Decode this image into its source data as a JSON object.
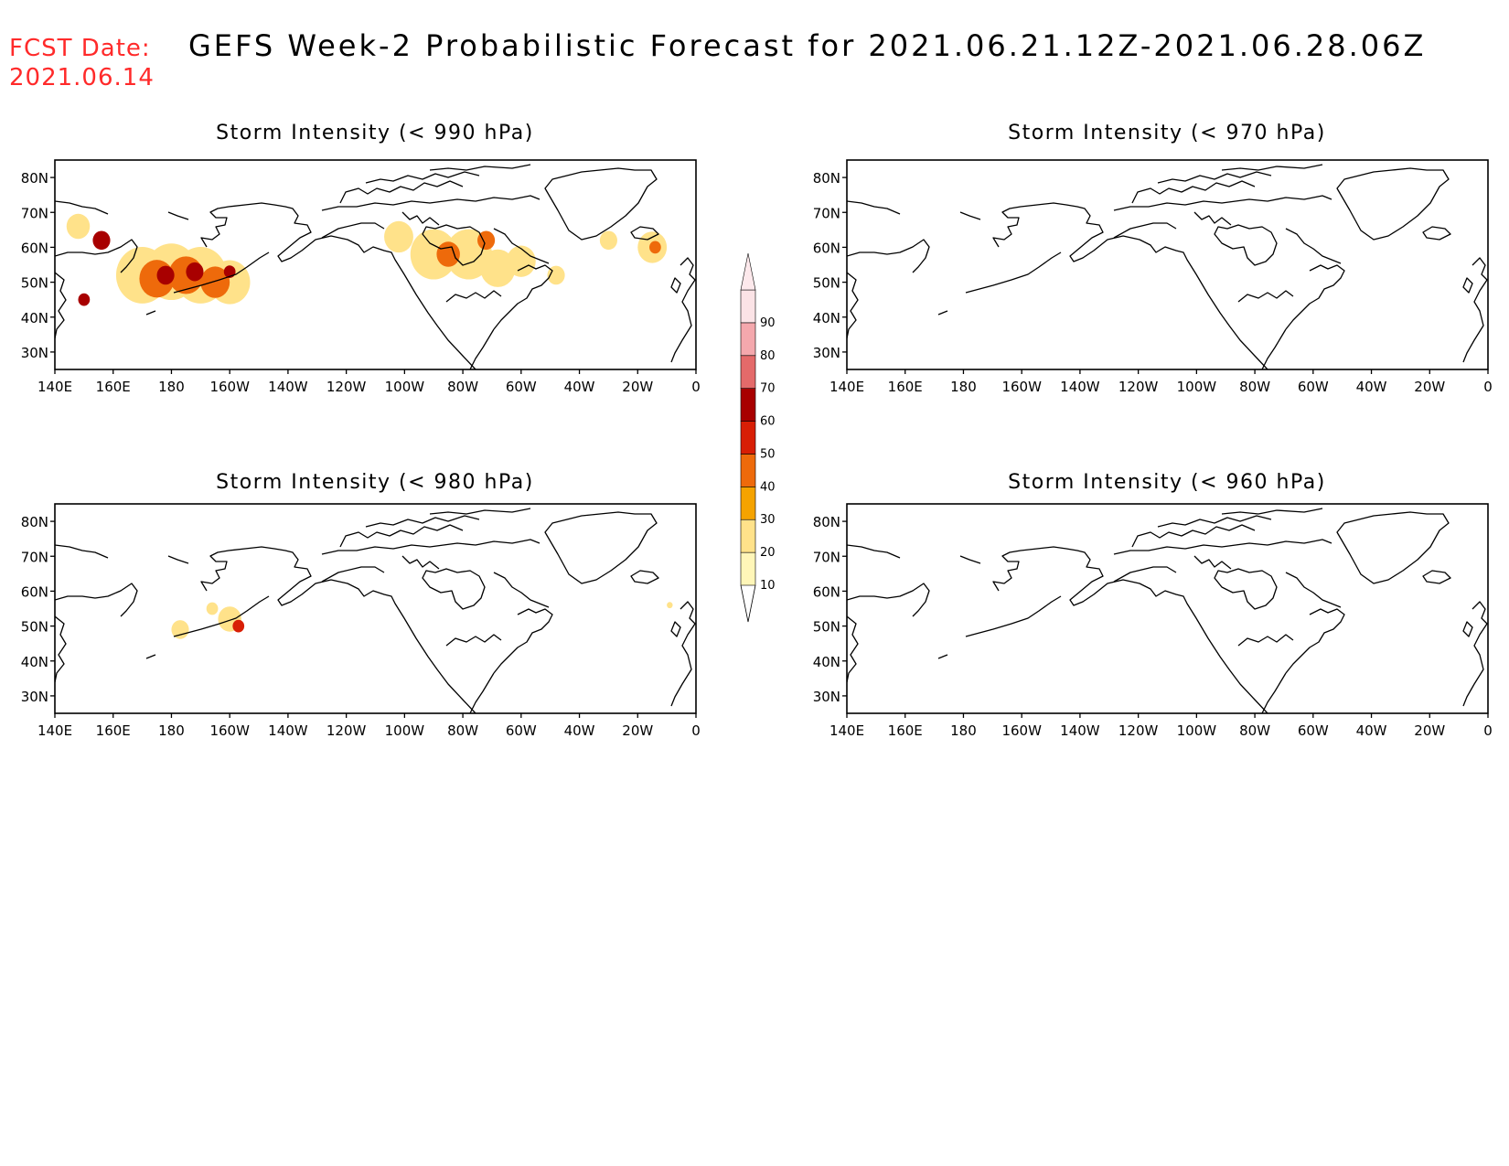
{
  "header": {
    "fcst_label": "FCST Date:",
    "fcst_date": "2021.06.14",
    "title": "GEFS Week-2 Probabilistic Forecast for 2021.06.21.12Z-2021.06.28.06Z"
  },
  "panels": [
    {
      "id": "p990",
      "title": "Storm Intensity (< 990 hPa)"
    },
    {
      "id": "p970",
      "title": "Storm Intensity (< 970 hPa)"
    },
    {
      "id": "p980",
      "title": "Storm Intensity (< 980 hPa)"
    },
    {
      "id": "p960",
      "title": "Storm Intensity (< 960 hPa)"
    }
  ],
  "axes": {
    "lat_labels": [
      "80N",
      "70N",
      "60N",
      "50N",
      "40N",
      "30N"
    ],
    "lon_labels": [
      "140E",
      "160E",
      "180",
      "160W",
      "140W",
      "120W",
      "100W",
      "80W",
      "60W",
      "40W",
      "20W",
      "0"
    ]
  },
  "colorbar": {
    "labels": [
      "10",
      "20",
      "30",
      "40",
      "50",
      "60",
      "70",
      "80",
      "90"
    ],
    "colors": [
      "#fff6b8",
      "#ffe28a",
      "#f5a300",
      "#ee6a0b",
      "#d81e05",
      "#a80000",
      "#e46a6a",
      "#f4a8ad",
      "#fbe3e6"
    ]
  },
  "map_data": {
    "domain": {
      "lon_range": [
        140,
        360
      ],
      "lat_range": [
        25,
        85
      ]
    },
    "blobs": {
      "p990": [
        {
          "lon": 156,
          "lat": 62,
          "r": 3,
          "level": 60
        },
        {
          "lon": 150,
          "lat": 45,
          "r": 2,
          "level": 60
        },
        {
          "lon": 170,
          "lat": 52,
          "r": 9,
          "level": 20
        },
        {
          "lon": 180,
          "lat": 53,
          "r": 9,
          "level": 20
        },
        {
          "lon": 190,
          "lat": 52,
          "r": 9,
          "level": 20
        },
        {
          "lon": 200,
          "lat": 50,
          "r": 7,
          "level": 20
        },
        {
          "lon": 175,
          "lat": 51,
          "r": 6,
          "level": 40
        },
        {
          "lon": 185,
          "lat": 52,
          "r": 6,
          "level": 40
        },
        {
          "lon": 195,
          "lat": 50,
          "r": 5,
          "level": 40
        },
        {
          "lon": 178,
          "lat": 52,
          "r": 3,
          "level": 60
        },
        {
          "lon": 188,
          "lat": 53,
          "r": 3,
          "level": 60
        },
        {
          "lon": 200,
          "lat": 53,
          "r": 2,
          "level": 60
        },
        {
          "lon": 148,
          "lat": 66,
          "r": 4,
          "level": 20
        },
        {
          "lon": 258,
          "lat": 63,
          "r": 5,
          "level": 20
        },
        {
          "lon": 270,
          "lat": 58,
          "r": 8,
          "level": 20
        },
        {
          "lon": 282,
          "lat": 58,
          "r": 8,
          "level": 20
        },
        {
          "lon": 292,
          "lat": 54,
          "r": 6,
          "level": 20
        },
        {
          "lon": 275,
          "lat": 58,
          "r": 4,
          "level": 40
        },
        {
          "lon": 288,
          "lat": 62,
          "r": 3,
          "level": 40
        },
        {
          "lon": 300,
          "lat": 56,
          "r": 5,
          "level": 20
        },
        {
          "lon": 312,
          "lat": 52,
          "r": 3,
          "level": 20
        },
        {
          "lon": 345,
          "lat": 60,
          "r": 5,
          "level": 20
        },
        {
          "lon": 346,
          "lat": 60,
          "r": 2,
          "level": 40
        },
        {
          "lon": 330,
          "lat": 62,
          "r": 3,
          "level": 20
        }
      ],
      "p980": [
        {
          "lon": 200,
          "lat": 52,
          "r": 4,
          "level": 20
        },
        {
          "lon": 203,
          "lat": 50,
          "r": 2,
          "level": 50
        },
        {
          "lon": 183,
          "lat": 49,
          "r": 3,
          "level": 20
        },
        {
          "lon": 194,
          "lat": 55,
          "r": 2,
          "level": 20
        },
        {
          "lon": 351,
          "lat": 56,
          "r": 1,
          "level": 20
        }
      ],
      "p970": [],
      "p960": []
    }
  }
}
